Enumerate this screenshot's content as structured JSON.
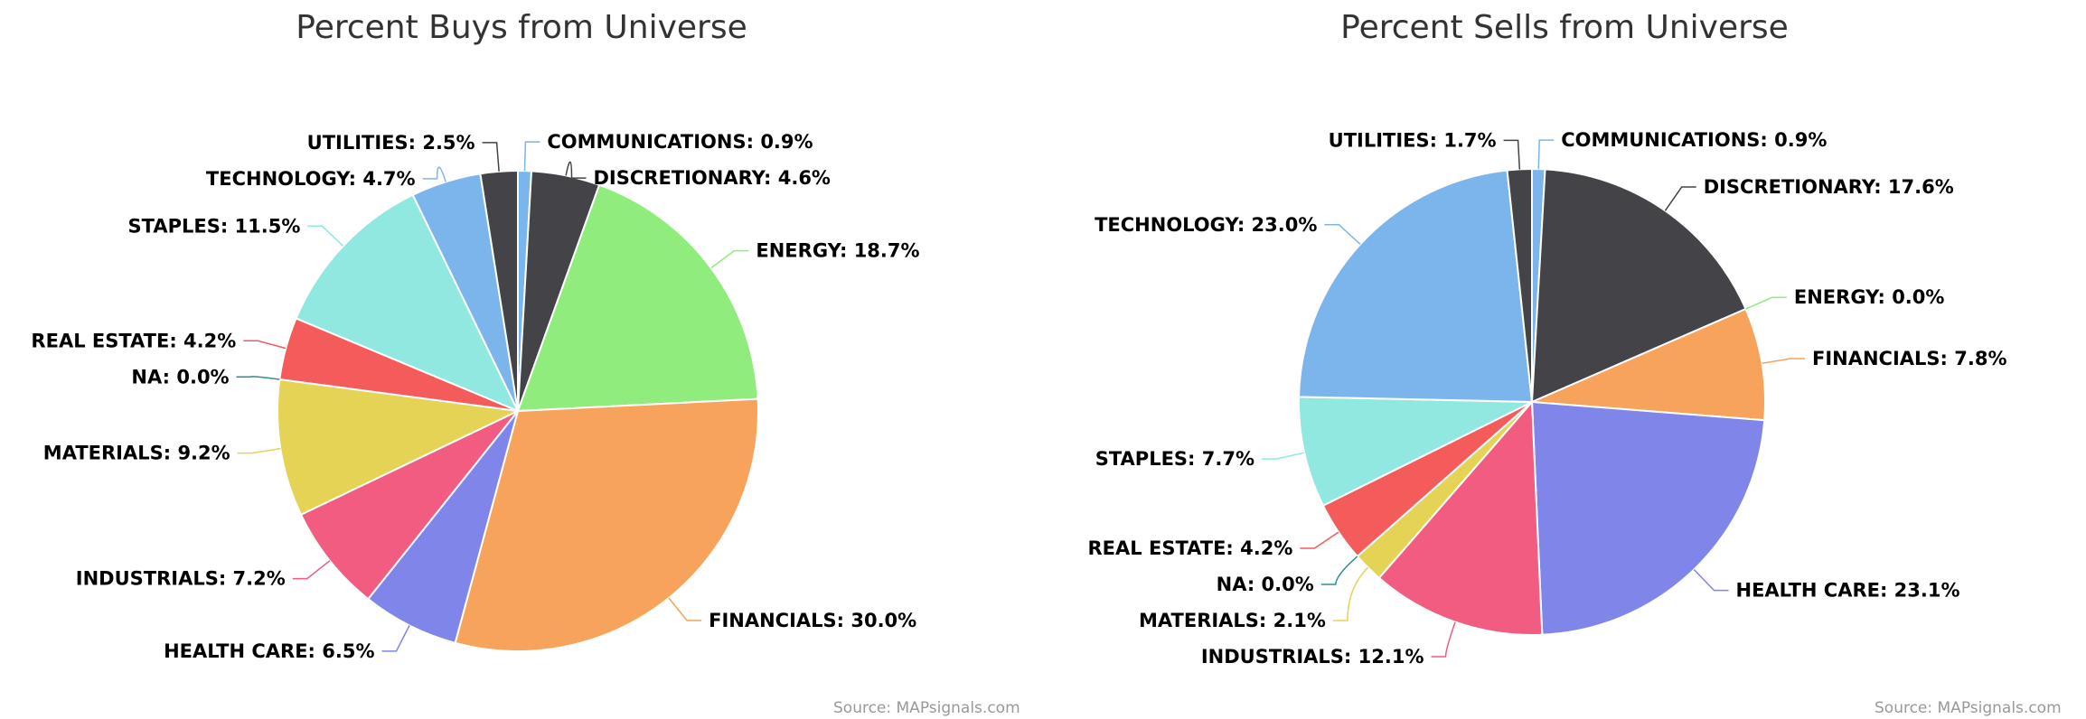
{
  "chart_data": [
    {
      "type": "pie",
      "title": "Percent Buys from Universe",
      "credit": "Source: MAPsignals.com",
      "slices": [
        {
          "label": "COMMUNICATIONS",
          "value": 0.9,
          "text": "COMMUNICATIONS: 0.9%",
          "color": "#7cb5ec"
        },
        {
          "label": "DISCRETIONARY",
          "value": 4.6,
          "text": "DISCRETIONARY: 4.6%",
          "color": "#434348"
        },
        {
          "label": "ENERGY",
          "value": 18.7,
          "text": "ENERGY: 18.7%",
          "color": "#90ed7d"
        },
        {
          "label": "FINANCIALS",
          "value": 30.0,
          "text": "FINANCIALS: 30.0%",
          "color": "#f7a35c"
        },
        {
          "label": "HEALTH CARE",
          "value": 6.5,
          "text": "HEALTH CARE: 6.5%",
          "color": "#8085e9"
        },
        {
          "label": "INDUSTRIALS",
          "value": 7.2,
          "text": "INDUSTRIALS: 7.2%",
          "color": "#f15c80"
        },
        {
          "label": "MATERIALS",
          "value": 9.2,
          "text": "MATERIALS: 9.2%",
          "color": "#e4d354"
        },
        {
          "label": "NA",
          "value": 0.0,
          "text": "NA: 0.0%",
          "color": "#2b908f"
        },
        {
          "label": "REAL ESTATE",
          "value": 4.2,
          "text": "REAL ESTATE: 4.2%",
          "color": "#f45b5b"
        },
        {
          "label": "STAPLES",
          "value": 11.5,
          "text": "STAPLES: 11.5%",
          "color": "#91e8e1"
        },
        {
          "label": "TECHNOLOGY",
          "value": 4.7,
          "text": "TECHNOLOGY: 4.7%",
          "color": "#7cb5ec"
        },
        {
          "label": "UTILITIES",
          "value": 2.5,
          "text": "UTILITIES: 2.5%",
          "color": "#434348"
        }
      ]
    },
    {
      "type": "pie",
      "title": "Percent Sells from Universe",
      "credit": "Source: MAPsignals.com",
      "slices": [
        {
          "label": "COMMUNICATIONS",
          "value": 0.9,
          "text": "COMMUNICATIONS: 0.9%",
          "color": "#7cb5ec"
        },
        {
          "label": "DISCRETIONARY",
          "value": 17.6,
          "text": "DISCRETIONARY: 17.6%",
          "color": "#434348"
        },
        {
          "label": "ENERGY",
          "value": 0.0,
          "text": "ENERGY: 0.0%",
          "color": "#90ed7d"
        },
        {
          "label": "FINANCIALS",
          "value": 7.8,
          "text": "FINANCIALS: 7.8%",
          "color": "#f7a35c"
        },
        {
          "label": "HEALTH CARE",
          "value": 23.1,
          "text": "HEALTH CARE: 23.1%",
          "color": "#8085e9"
        },
        {
          "label": "INDUSTRIALS",
          "value": 12.1,
          "text": "INDUSTRIALS: 12.1%",
          "color": "#f15c80"
        },
        {
          "label": "MATERIALS",
          "value": 2.1,
          "text": "MATERIALS: 2.1%",
          "color": "#e4d354"
        },
        {
          "label": "NA",
          "value": 0.0,
          "text": "NA: 0.0%",
          "color": "#2b908f"
        },
        {
          "label": "REAL ESTATE",
          "value": 4.2,
          "text": "REAL ESTATE: 4.2%",
          "color": "#f45b5b"
        },
        {
          "label": "STAPLES",
          "value": 7.7,
          "text": "STAPLES: 7.7%",
          "color": "#91e8e1"
        },
        {
          "label": "TECHNOLOGY",
          "value": 23.0,
          "text": "TECHNOLOGY: 23.0%",
          "color": "#7cb5ec"
        },
        {
          "label": "UTILITIES",
          "value": 1.7,
          "text": "UTILITIES: 1.7%",
          "color": "#434348"
        }
      ]
    }
  ]
}
